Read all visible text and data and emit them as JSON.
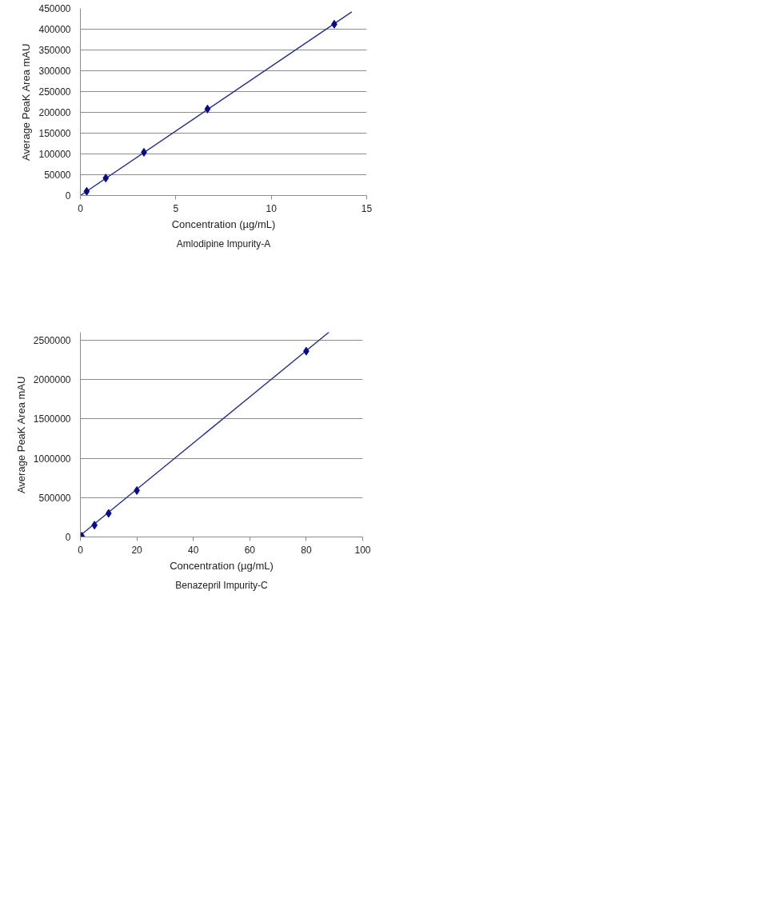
{
  "chart_data": [
    {
      "type": "scatter",
      "title": "Amlodipine Impurity-A",
      "xlabel": "Concentration (µg/mL)",
      "ylabel": "Average PeaK Area mAU",
      "series": [
        {
          "color": "#0a0a8c",
          "marker": "diamond",
          "x": [
            0.33,
            1.33,
            3.33,
            6.66,
            13.3
          ],
          "values": [
            10000,
            42000,
            104000,
            208000,
            412000
          ]
        },
        {
          "type": "line",
          "color": "#23308f",
          "line_style": "solid",
          "x": [
            0,
            14.2
          ],
          "values": [
            0,
            441000
          ]
        }
      ],
      "xlim": [
        0,
        15
      ],
      "xticks": [
        0,
        5,
        10,
        15
      ],
      "ylim": [
        0,
        450000
      ],
      "yticks": [
        0,
        50000,
        100000,
        150000,
        200000,
        250000,
        300000,
        350000,
        400000,
        450000
      ],
      "grid": "y"
    },
    {
      "type": "scatter",
      "title": "Benazepril Impurity-C",
      "xlabel": "Concentration (µg/mL)",
      "ylabel": "Average PeaK Area mAU",
      "series": [
        {
          "color": "#0a0a8c",
          "marker": "diamond",
          "x": [
            0.5,
            5,
            10,
            20,
            80
          ],
          "values": [
            10000,
            150000,
            300000,
            590000,
            2360000
          ]
        },
        {
          "type": "line",
          "color": "#23308f",
          "line_style": "solid",
          "x": [
            0,
            88
          ],
          "values": [
            20000,
            2600000
          ]
        }
      ],
      "xlim": [
        0,
        100
      ],
      "xticks": [
        0,
        20,
        40,
        60,
        80,
        100
      ],
      "ylim": [
        0,
        2600000
      ],
      "yticks": [
        0,
        500000,
        1000000,
        1500000,
        2000000,
        2500000
      ],
      "grid": "y"
    }
  ]
}
